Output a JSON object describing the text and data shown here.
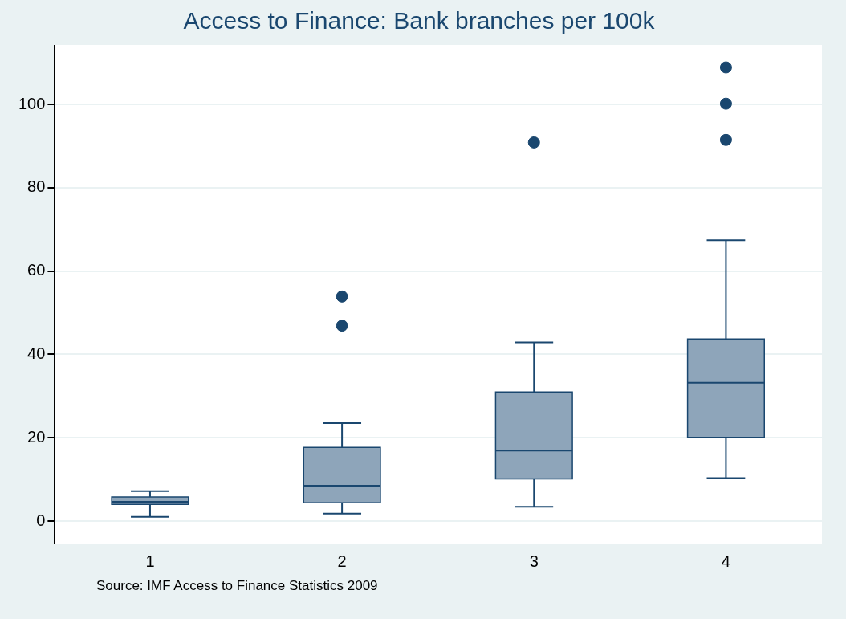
{
  "chart_data": {
    "type": "box",
    "title": "Access to Finance: Bank branches per 100k",
    "categories": [
      "1",
      "2",
      "3",
      "4"
    ],
    "color": "#8ea5ba",
    "boxes": [
      {
        "low": 1.0,
        "q1": 4.0,
        "median": 4.6,
        "q3": 5.8,
        "high": 7.2
      },
      {
        "low": 1.8,
        "q1": 4.4,
        "median": 8.5,
        "q3": 17.7,
        "high": 23.5,
        "outliers": [
          53.9,
          46.9
        ]
      },
      {
        "low": 3.4,
        "q1": 10.1,
        "median": 16.9,
        "q3": 31.0,
        "high": 42.9,
        "outliers": [
          90.9
        ]
      },
      {
        "low": 10.3,
        "q1": 20.1,
        "median": 33.2,
        "q3": 43.7,
        "high": 67.4,
        "outliers": [
          108.9,
          100.2,
          91.5
        ]
      }
    ],
    "ylim": [
      -5.4,
      114.3
    ],
    "yticks": [
      0,
      20,
      40,
      60,
      80,
      100
    ],
    "grid": "y",
    "legend": false,
    "marker": "circle",
    "annotations": [
      "Source: IMF Access to Finance Statistics 2009"
    ]
  }
}
